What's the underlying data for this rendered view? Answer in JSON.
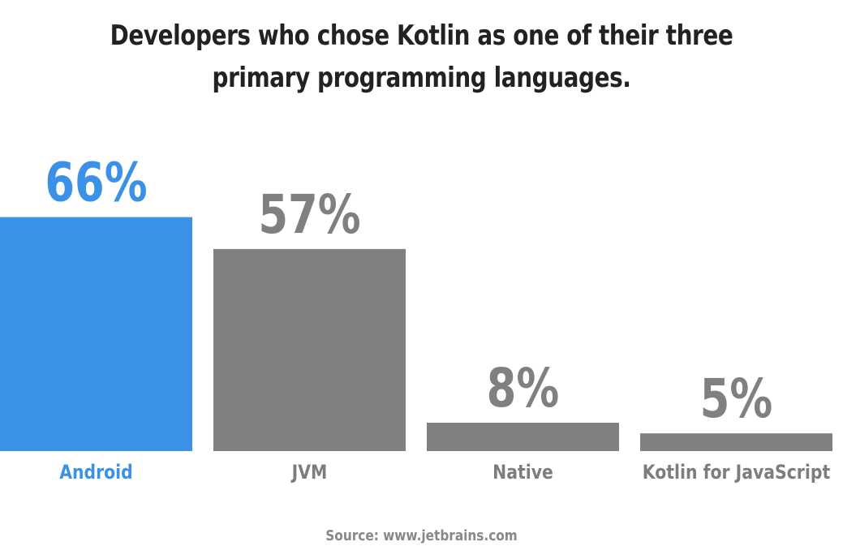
{
  "title": "Developers who chose Kotlin as one of their three primary programming languages.",
  "source": "Source: www.jetbrains.com",
  "colors": {
    "highlight": "#3a91e6",
    "default": "#808080",
    "highlight_label": "#3a91e6",
    "default_label": "#7d7d7d"
  },
  "chart_data": {
    "type": "bar",
    "categories": [
      "Android",
      "JVM",
      "Native",
      "Kotlin for JavaScript"
    ],
    "values": [
      66,
      57,
      8,
      5
    ],
    "value_labels": [
      "66%",
      "57%",
      "8%",
      "5%"
    ],
    "highlighted": [
      "Android"
    ],
    "ylim": [
      0,
      100
    ],
    "grid": false,
    "legend": "none"
  }
}
